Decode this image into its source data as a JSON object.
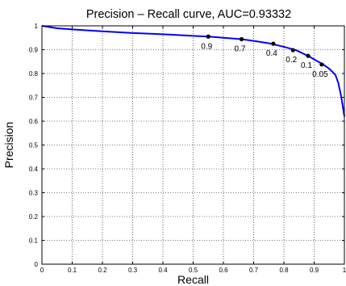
{
  "chart_data": {
    "type": "line",
    "title": "Precision – Recall curve, AUC=0.93332",
    "xlabel": "Recall",
    "ylabel": "Precision",
    "xlim": [
      0,
      1
    ],
    "ylim": [
      0,
      1
    ],
    "grid": true,
    "x_ticks": [
      "0",
      "0.1",
      "0.2",
      "0.3",
      "0.4",
      "0.5",
      "0.6",
      "0.7",
      "0.8",
      "0.9",
      "1"
    ],
    "y_ticks": [
      "0",
      "0.1",
      "0.2",
      "0.3",
      "0.4",
      "0.5",
      "0.6",
      "0.7",
      "0.8",
      "0.9",
      "1"
    ],
    "series": [
      {
        "color": "#0000ff",
        "x": [
          0.0,
          0.05,
          0.1,
          0.2,
          0.3,
          0.4,
          0.5,
          0.55,
          0.6,
          0.66,
          0.7,
          0.75,
          0.8,
          0.84,
          0.88,
          0.91,
          0.93,
          0.95,
          0.97,
          0.98,
          0.99,
          1.0
        ],
        "y": [
          1.0,
          0.99,
          0.985,
          0.977,
          0.97,
          0.965,
          0.958,
          0.955,
          0.95,
          0.944,
          0.937,
          0.927,
          0.912,
          0.898,
          0.874,
          0.852,
          0.838,
          0.82,
          0.795,
          0.76,
          0.7,
          0.62
        ]
      }
    ],
    "threshold_points": [
      {
        "label": "0.9",
        "x": 0.55,
        "y": 0.955
      },
      {
        "label": "0.7",
        "x": 0.66,
        "y": 0.944
      },
      {
        "label": "0.4",
        "x": 0.765,
        "y": 0.925
      },
      {
        "label": "0.2",
        "x": 0.83,
        "y": 0.898
      },
      {
        "label": "0.1",
        "x": 0.88,
        "y": 0.874
      },
      {
        "label": "0.05",
        "x": 0.925,
        "y": 0.838
      }
    ]
  }
}
